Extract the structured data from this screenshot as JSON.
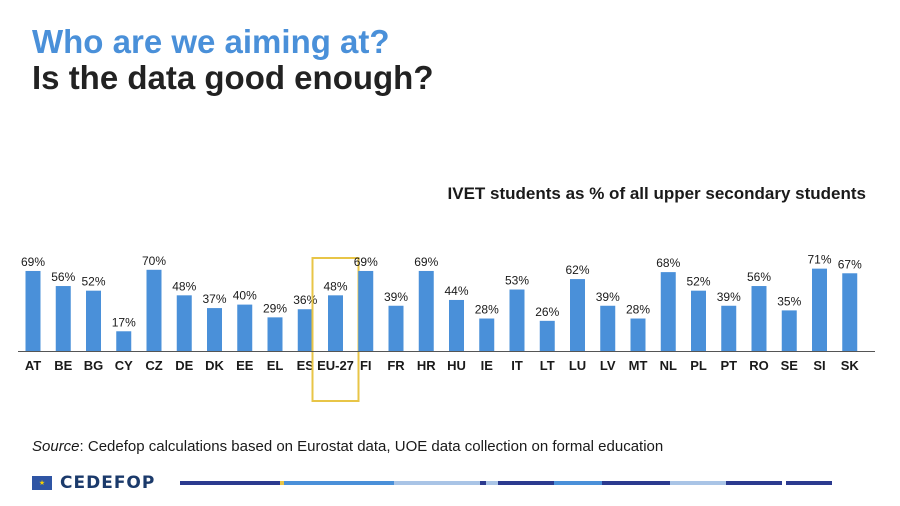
{
  "slide": {
    "title_line1": "Who are we aiming at?",
    "title_line2": "Is the data good enough?",
    "source_label": "Source",
    "source_text": ": Cedefop calculations based on Eurostat data, UOE data collection on formal education",
    "logo_text": "CEDEFOP",
    "logo_icon": "eu-flag-icon"
  },
  "colors": {
    "title_accent": "#4a90d9",
    "bar": "#4a90d9",
    "highlight_box": "#e8c547",
    "footer_dark": "#2b3a8f",
    "footer_light": "#a9c4e6",
    "footer_mid": "#4a90d9"
  },
  "chart_data": {
    "type": "bar",
    "title": "IVET students as % of all upper secondary students",
    "categories": [
      "AT",
      "BE",
      "BG",
      "CY",
      "CZ",
      "DE",
      "DK",
      "EE",
      "EL",
      "ES",
      "EU-27",
      "FI",
      "FR",
      "HR",
      "HU",
      "IE",
      "IT",
      "LT",
      "LU",
      "LV",
      "MT",
      "NL",
      "PL",
      "PT",
      "RO",
      "SE",
      "SI",
      "SK"
    ],
    "values": [
      69,
      56,
      52,
      17,
      70,
      48,
      37,
      40,
      29,
      36,
      48,
      69,
      39,
      69,
      44,
      28,
      53,
      26,
      62,
      39,
      28,
      68,
      52,
      39,
      56,
      35,
      71,
      67
    ],
    "value_labels": [
      "69%",
      "56%",
      "52%",
      "17%",
      "70%",
      "48%",
      "37%",
      "40%",
      "29%",
      "36%",
      "48%",
      "69%",
      "39%",
      "69%",
      "44%",
      "28%",
      "53%",
      "26%",
      "62%",
      "39%",
      "28%",
      "68%",
      "52%",
      "39%",
      "56%",
      "35%",
      "71%",
      "67%"
    ],
    "highlighted_category": "EU-27",
    "ylim": [
      0,
      100
    ],
    "grid": false,
    "legend": "none"
  }
}
